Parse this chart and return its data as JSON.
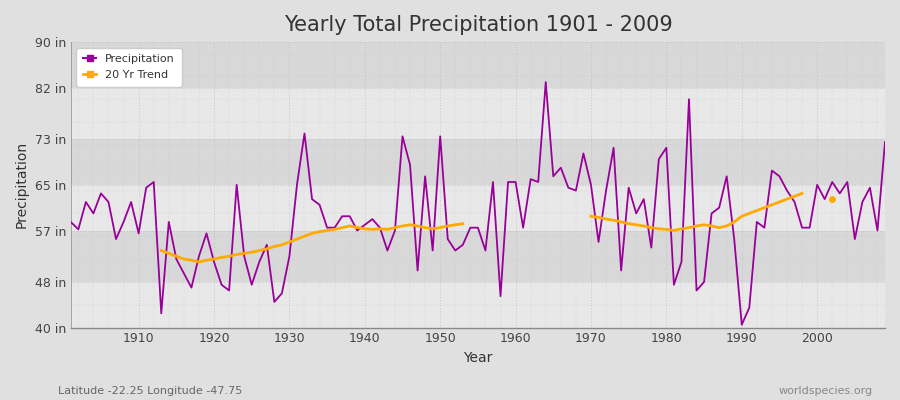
{
  "title": "Yearly Total Precipitation 1901 - 2009",
  "xlabel": "Year",
  "ylabel": "Precipitation",
  "subtitle": "Latitude -22.25 Longitude -47.75",
  "watermark": "worldspecies.org",
  "years": [
    1901,
    1902,
    1903,
    1904,
    1905,
    1906,
    1907,
    1908,
    1909,
    1910,
    1911,
    1912,
    1913,
    1914,
    1915,
    1916,
    1917,
    1918,
    1919,
    1920,
    1921,
    1922,
    1923,
    1924,
    1925,
    1926,
    1927,
    1928,
    1929,
    1930,
    1931,
    1932,
    1933,
    1934,
    1935,
    1936,
    1937,
    1938,
    1939,
    1940,
    1941,
    1942,
    1943,
    1944,
    1945,
    1946,
    1947,
    1948,
    1949,
    1950,
    1951,
    1952,
    1953,
    1954,
    1955,
    1956,
    1957,
    1958,
    1959,
    1960,
    1961,
    1962,
    1963,
    1964,
    1965,
    1966,
    1967,
    1968,
    1969,
    1970,
    1971,
    1972,
    1973,
    1974,
    1975,
    1976,
    1977,
    1978,
    1979,
    1980,
    1981,
    1982,
    1983,
    1984,
    1985,
    1986,
    1987,
    1988,
    1989,
    1990,
    1991,
    1992,
    1993,
    1994,
    1995,
    1996,
    1997,
    1998,
    1999,
    2000,
    2001,
    2002,
    2003,
    2004,
    2005,
    2006,
    2007,
    2008,
    2009
  ],
  "precip": [
    58.5,
    57.2,
    62.0,
    60.0,
    63.5,
    62.0,
    55.5,
    58.5,
    62.0,
    56.5,
    64.5,
    65.5,
    42.5,
    58.5,
    52.0,
    49.5,
    47.0,
    52.5,
    56.5,
    51.5,
    47.5,
    46.5,
    65.0,
    52.5,
    47.5,
    51.5,
    54.5,
    44.5,
    46.0,
    52.5,
    65.0,
    74.0,
    62.5,
    61.5,
    57.5,
    57.5,
    59.5,
    59.5,
    57.0,
    58.0,
    59.0,
    57.5,
    53.5,
    57.0,
    73.5,
    68.5,
    50.0,
    66.5,
    53.5,
    73.5,
    55.5,
    53.5,
    54.5,
    57.5,
    57.5,
    53.5,
    65.5,
    45.5,
    65.5,
    65.5,
    57.5,
    66.0,
    65.5,
    83.0,
    66.5,
    68.0,
    64.5,
    64.0,
    70.5,
    65.0,
    55.0,
    64.0,
    71.5,
    50.0,
    64.5,
    60.0,
    62.5,
    54.0,
    69.5,
    71.5,
    47.5,
    51.5,
    80.0,
    46.5,
    48.0,
    60.0,
    61.0,
    66.5,
    55.5,
    40.5,
    43.5,
    58.5,
    57.5,
    67.5,
    66.5,
    64.0,
    62.0,
    57.5,
    57.5,
    65.0,
    62.5,
    65.5,
    63.5,
    65.5,
    55.5,
    62.0,
    64.5,
    57.0,
    72.5
  ],
  "trend_years": [
    1913,
    1914,
    1915,
    1916,
    1917,
    1918,
    1919,
    1920,
    1921,
    1922,
    1923,
    1924,
    1925,
    1926,
    1927,
    1928,
    1929,
    1930,
    1931,
    1932,
    1933,
    1934,
    1935,
    1936,
    1937,
    1938,
    1939,
    1940,
    1941,
    1942,
    1943,
    1944,
    1945,
    1946,
    1947,
    1948,
    1949,
    1950,
    1951,
    1952,
    1953,
    1970,
    1971,
    1972,
    1973,
    1974,
    1975,
    1976,
    1977,
    1978,
    1979,
    1980,
    1981,
    1982,
    1983,
    1984,
    1985,
    1986,
    1987,
    1988,
    1989,
    1990,
    1991,
    1992,
    1993,
    1994,
    1995,
    1996,
    1997,
    1998,
    2002
  ],
  "trend_vals": [
    53.5,
    53.0,
    52.5,
    52.0,
    51.8,
    51.5,
    51.8,
    52.0,
    52.3,
    52.5,
    52.8,
    53.0,
    53.2,
    53.5,
    53.8,
    54.2,
    54.5,
    55.0,
    55.5,
    56.0,
    56.5,
    56.8,
    57.0,
    57.2,
    57.5,
    57.8,
    57.5,
    57.3,
    57.2,
    57.3,
    57.2,
    57.5,
    57.8,
    58.0,
    57.8,
    57.5,
    57.3,
    57.5,
    57.8,
    58.0,
    58.2,
    59.5,
    59.3,
    59.0,
    58.8,
    58.5,
    58.2,
    58.0,
    57.8,
    57.5,
    57.3,
    57.2,
    57.0,
    57.3,
    57.5,
    57.8,
    58.0,
    57.8,
    57.5,
    57.8,
    58.5,
    59.5,
    60.0,
    60.5,
    61.0,
    61.5,
    62.0,
    62.5,
    63.0,
    63.5,
    62.5
  ],
  "ylim": [
    40,
    90
  ],
  "yticks": [
    40,
    48,
    57,
    65,
    73,
    82,
    90
  ],
  "ytick_labels": [
    "40 in",
    "48 in",
    "57 in",
    "65 in",
    "73 in",
    "82 in",
    "90 in"
  ],
  "xticks": [
    1910,
    1920,
    1930,
    1940,
    1950,
    1960,
    1970,
    1980,
    1990,
    2000
  ],
  "precip_color": "#990099",
  "trend_color": "#ffaa00",
  "bg_color": "#e0e0e0",
  "plot_bg_color": "#e8e8e8",
  "band_color_1": "#e8e8e8",
  "band_color_2": "#d8d8d8",
  "title_fontsize": 15,
  "label_fontsize": 10,
  "tick_fontsize": 9
}
